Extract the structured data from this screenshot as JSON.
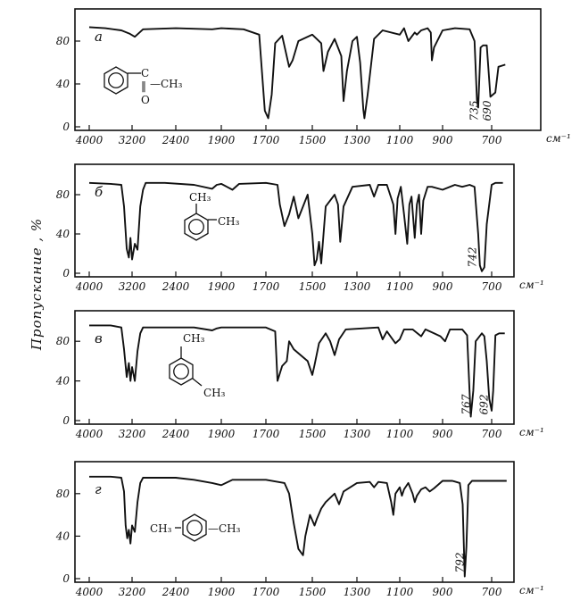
{
  "chart_data": {
    "type": "line",
    "ylabel": "Пропускание , %",
    "x_unit": "см⁻¹",
    "panels": [
      {
        "letter": "а",
        "x_ticks": [
          "4000",
          "3200",
          "2400",
          "1900",
          "1700",
          "1500",
          "1300",
          "1100",
          "900",
          "700"
        ],
        "y_ticks": [
          "0",
          "40",
          "80"
        ],
        "ylim": [
          0,
          100
        ],
        "xlim": [
          4000,
          600
        ],
        "structure": {
          "group_top": "C",
          "group_right": "—CH₃",
          "double_bond": "‖",
          "atom_bottom": "O"
        },
        "peak_labels": [
          {
            "text": "735",
            "x": 735
          },
          {
            "text": "690",
            "x": 690
          }
        ],
        "points": [
          [
            4000,
            93
          ],
          [
            3700,
            92
          ],
          [
            3400,
            90
          ],
          [
            3250,
            87
          ],
          [
            3150,
            84
          ],
          [
            3000,
            91
          ],
          [
            2400,
            92
          ],
          [
            2000,
            91
          ],
          [
            1900,
            92
          ],
          [
            1800,
            91
          ],
          [
            1730,
            86
          ],
          [
            1705,
            15
          ],
          [
            1690,
            8
          ],
          [
            1675,
            30
          ],
          [
            1660,
            78
          ],
          [
            1630,
            85
          ],
          [
            1600,
            56
          ],
          [
            1585,
            62
          ],
          [
            1560,
            80
          ],
          [
            1500,
            86
          ],
          [
            1460,
            78
          ],
          [
            1450,
            52
          ],
          [
            1430,
            70
          ],
          [
            1400,
            82
          ],
          [
            1370,
            66
          ],
          [
            1360,
            24
          ],
          [
            1345,
            52
          ],
          [
            1320,
            80
          ],
          [
            1300,
            84
          ],
          [
            1285,
            60
          ],
          [
            1270,
            16
          ],
          [
            1265,
            8
          ],
          [
            1250,
            30
          ],
          [
            1220,
            82
          ],
          [
            1180,
            90
          ],
          [
            1100,
            86
          ],
          [
            1080,
            92
          ],
          [
            1060,
            80
          ],
          [
            1030,
            88
          ],
          [
            1020,
            86
          ],
          [
            1000,
            90
          ],
          [
            970,
            92
          ],
          [
            955,
            88
          ],
          [
            950,
            62
          ],
          [
            940,
            74
          ],
          [
            900,
            90
          ],
          [
            850,
            92
          ],
          [
            790,
            91
          ],
          [
            770,
            80
          ],
          [
            760,
            25
          ],
          [
            755,
            18
          ],
          [
            745,
            74
          ],
          [
            735,
            76
          ],
          [
            720,
            76
          ],
          [
            705,
            28
          ],
          [
            692,
            32
          ],
          [
            685,
            56
          ],
          [
            670,
            58
          ]
        ]
      },
      {
        "letter": "б",
        "x_ticks": [
          "4000",
          "3200",
          "2400",
          "1900",
          "1700",
          "1500",
          "1300",
          "1100",
          "900",
          "700"
        ],
        "y_ticks": [
          "0",
          "40",
          "80"
        ],
        "ylim": [
          0,
          100
        ],
        "xlim": [
          4000,
          600
        ],
        "structure": {
          "sub1": "CH₃",
          "sub2": "CH₃"
        },
        "peak_labels": [
          {
            "text": "742",
            "x": 742
          }
        ],
        "points": [
          [
            4000,
            92
          ],
          [
            3600,
            91
          ],
          [
            3400,
            90
          ],
          [
            3350,
            68
          ],
          [
            3300,
            25
          ],
          [
            3260,
            16
          ],
          [
            3230,
            36
          ],
          [
            3200,
            14
          ],
          [
            3150,
            30
          ],
          [
            3100,
            24
          ],
          [
            3050,
            68
          ],
          [
            3000,
            85
          ],
          [
            2950,
            92
          ],
          [
            2600,
            92
          ],
          [
            2200,
            90
          ],
          [
            2000,
            86
          ],
          [
            1950,
            90
          ],
          [
            1900,
            91
          ],
          [
            1850,
            85
          ],
          [
            1820,
            91
          ],
          [
            1700,
            92
          ],
          [
            1650,
            90
          ],
          [
            1640,
            70
          ],
          [
            1620,
            48
          ],
          [
            1600,
            60
          ],
          [
            1580,
            78
          ],
          [
            1560,
            56
          ],
          [
            1520,
            80
          ],
          [
            1500,
            40
          ],
          [
            1490,
            8
          ],
          [
            1480,
            14
          ],
          [
            1470,
            32
          ],
          [
            1460,
            10
          ],
          [
            1440,
            68
          ],
          [
            1400,
            80
          ],
          [
            1385,
            70
          ],
          [
            1375,
            32
          ],
          [
            1360,
            68
          ],
          [
            1320,
            88
          ],
          [
            1240,
            90
          ],
          [
            1220,
            78
          ],
          [
            1200,
            90
          ],
          [
            1160,
            90
          ],
          [
            1130,
            70
          ],
          [
            1120,
            40
          ],
          [
            1110,
            76
          ],
          [
            1095,
            88
          ],
          [
            1080,
            60
          ],
          [
            1065,
            30
          ],
          [
            1055,
            70
          ],
          [
            1045,
            78
          ],
          [
            1030,
            36
          ],
          [
            1020,
            70
          ],
          [
            1010,
            80
          ],
          [
            1000,
            40
          ],
          [
            990,
            74
          ],
          [
            970,
            88
          ],
          [
            950,
            88
          ],
          [
            900,
            85
          ],
          [
            850,
            90
          ],
          [
            820,
            88
          ],
          [
            790,
            90
          ],
          [
            770,
            88
          ],
          [
            755,
            40
          ],
          [
            748,
            8
          ],
          [
            740,
            2
          ],
          [
            730,
            6
          ],
          [
            720,
            50
          ],
          [
            700,
            90
          ],
          [
            680,
            92
          ],
          [
            640,
            92
          ]
        ]
      },
      {
        "letter": "в",
        "x_ticks": [
          "4000",
          "3200",
          "2400",
          "1900",
          "1700",
          "1500",
          "1300",
          "1100",
          "900",
          "700"
        ],
        "y_ticks": [
          "0",
          "40",
          "80"
        ],
        "ylim": [
          0,
          100
        ],
        "xlim": [
          4000,
          600
        ],
        "structure": {
          "sub1": "CH₃",
          "sub2": "CH₃"
        },
        "peak_labels": [
          {
            "text": "767",
            "x": 767
          },
          {
            "text": "692",
            "x": 692
          }
        ],
        "points": [
          [
            4000,
            96
          ],
          [
            3600,
            96
          ],
          [
            3400,
            94
          ],
          [
            3350,
            72
          ],
          [
            3300,
            44
          ],
          [
            3260,
            58
          ],
          [
            3230,
            40
          ],
          [
            3200,
            54
          ],
          [
            3150,
            40
          ],
          [
            3100,
            70
          ],
          [
            3050,
            88
          ],
          [
            3000,
            94
          ],
          [
            2200,
            94
          ],
          [
            2000,
            91
          ],
          [
            1950,
            93
          ],
          [
            1900,
            94
          ],
          [
            1700,
            94
          ],
          [
            1660,
            90
          ],
          [
            1650,
            40
          ],
          [
            1630,
            55
          ],
          [
            1610,
            60
          ],
          [
            1600,
            80
          ],
          [
            1580,
            72
          ],
          [
            1540,
            64
          ],
          [
            1520,
            60
          ],
          [
            1500,
            46
          ],
          [
            1490,
            56
          ],
          [
            1470,
            78
          ],
          [
            1440,
            88
          ],
          [
            1420,
            80
          ],
          [
            1400,
            66
          ],
          [
            1380,
            82
          ],
          [
            1350,
            92
          ],
          [
            1200,
            94
          ],
          [
            1180,
            82
          ],
          [
            1160,
            90
          ],
          [
            1140,
            84
          ],
          [
            1120,
            78
          ],
          [
            1100,
            82
          ],
          [
            1080,
            92
          ],
          [
            1040,
            92
          ],
          [
            1000,
            85
          ],
          [
            980,
            92
          ],
          [
            940,
            88
          ],
          [
            910,
            85
          ],
          [
            890,
            80
          ],
          [
            870,
            92
          ],
          [
            820,
            92
          ],
          [
            800,
            86
          ],
          [
            790,
            28
          ],
          [
            785,
            4
          ],
          [
            775,
            30
          ],
          [
            765,
            80
          ],
          [
            740,
            88
          ],
          [
            730,
            85
          ],
          [
            720,
            60
          ],
          [
            710,
            22
          ],
          [
            700,
            10
          ],
          [
            692,
            30
          ],
          [
            680,
            86
          ],
          [
            660,
            88
          ],
          [
            630,
            88
          ]
        ]
      },
      {
        "letter": "г",
        "x_ticks": [
          "4000",
          "3200",
          "2400",
          "1900",
          "1700",
          "1500",
          "1300",
          "1100",
          "900",
          "700"
        ],
        "y_ticks": [
          "0",
          "40",
          "80"
        ],
        "ylim": [
          0,
          100
        ],
        "xlim": [
          4000,
          600
        ],
        "structure": {
          "sub1": "CH₃",
          "sub2": "—CH₃"
        },
        "peak_labels": [
          {
            "text": "792",
            "x": 792
          }
        ],
        "points": [
          [
            4000,
            96
          ],
          [
            3600,
            96
          ],
          [
            3400,
            95
          ],
          [
            3350,
            82
          ],
          [
            3320,
            50
          ],
          [
            3290,
            38
          ],
          [
            3260,
            46
          ],
          [
            3230,
            33
          ],
          [
            3200,
            50
          ],
          [
            3150,
            44
          ],
          [
            3100,
            72
          ],
          [
            3050,
            90
          ],
          [
            3000,
            95
          ],
          [
            2400,
            95
          ],
          [
            2200,
            93
          ],
          [
            2000,
            90
          ],
          [
            1900,
            88
          ],
          [
            1850,
            93
          ],
          [
            1700,
            93
          ],
          [
            1620,
            90
          ],
          [
            1600,
            80
          ],
          [
            1580,
            52
          ],
          [
            1560,
            28
          ],
          [
            1540,
            22
          ],
          [
            1530,
            40
          ],
          [
            1510,
            60
          ],
          [
            1490,
            50
          ],
          [
            1480,
            56
          ],
          [
            1460,
            66
          ],
          [
            1440,
            72
          ],
          [
            1400,
            80
          ],
          [
            1380,
            70
          ],
          [
            1360,
            82
          ],
          [
            1300,
            90
          ],
          [
            1240,
            91
          ],
          [
            1220,
            86
          ],
          [
            1200,
            91
          ],
          [
            1160,
            90
          ],
          [
            1140,
            72
          ],
          [
            1130,
            60
          ],
          [
            1120,
            80
          ],
          [
            1100,
            86
          ],
          [
            1090,
            78
          ],
          [
            1080,
            84
          ],
          [
            1060,
            90
          ],
          [
            1040,
            80
          ],
          [
            1030,
            72
          ],
          [
            1020,
            78
          ],
          [
            1000,
            84
          ],
          [
            980,
            86
          ],
          [
            960,
            82
          ],
          [
            940,
            85
          ],
          [
            900,
            92
          ],
          [
            860,
            92
          ],
          [
            830,
            90
          ],
          [
            818,
            70
          ],
          [
            810,
            2
          ],
          [
            803,
            30
          ],
          [
            795,
            88
          ],
          [
            780,
            92
          ],
          [
            700,
            92
          ],
          [
            620,
            92
          ]
        ]
      }
    ]
  }
}
